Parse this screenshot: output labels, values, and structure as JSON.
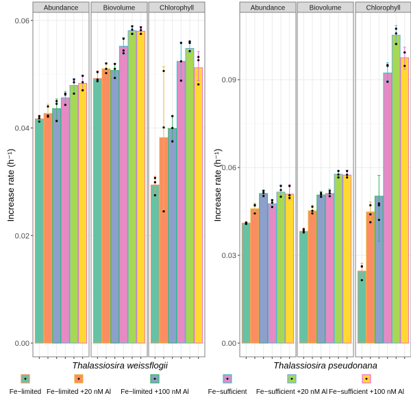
{
  "chart_data": [
    {
      "type": "bar",
      "title": "",
      "xlabel": "Thalassiosira weissflogii",
      "ylabel": "Increase rate (h⁻¹)",
      "ylim": [
        0,
        0.0615
      ],
      "yticks": [
        0.0,
        0.02,
        0.04,
        0.06
      ],
      "ytick_labels": [
        "0.00",
        "0.02",
        "0.04",
        "0.06"
      ],
      "grid": true,
      "facets": [
        "Abundance",
        "Biovolume",
        "Chlorophyll"
      ],
      "categories": [
        "Fe−limited",
        "Fe−limited +20 nM Al",
        "Fe−limited +100 nM Al",
        "Fe−sufficient",
        "Fe−sufficient +20 nM Al",
        "Fe−sufficient +100 nM Al"
      ],
      "series": [
        {
          "name": "Abundance",
          "values": [
            0.0417,
            0.0427,
            0.0436,
            0.0456,
            0.0479,
            0.0483
          ],
          "err_low": [
            0.0412,
            0.0422,
            0.0415,
            0.0443,
            0.0463,
            0.047
          ],
          "err_high": [
            0.0423,
            0.0444,
            0.0454,
            0.0468,
            0.0492,
            0.0498
          ],
          "points": [
            [
              0.0412,
              0.0418,
              0.0422
            ],
            [
              0.0421,
              0.0423,
              0.044
            ],
            [
              0.0413,
              0.0445,
              0.045
            ],
            [
              0.0443,
              0.0462,
              0.0464
            ],
            [
              0.0464,
              0.0485,
              0.049
            ],
            [
              0.047,
              0.0485,
              0.0497
            ]
          ]
        },
        {
          "name": "Biovolume",
          "values": [
            0.0492,
            0.051,
            0.0507,
            0.0552,
            0.0581,
            0.058
          ],
          "err_low": [
            0.0487,
            0.05,
            0.0493,
            0.0537,
            0.0574,
            0.0574
          ],
          "err_high": [
            0.0506,
            0.0521,
            0.052,
            0.0568,
            0.059,
            0.0589
          ],
          "points": [
            [
              0.0487,
              0.049,
              0.0504
            ],
            [
              0.0502,
              0.051,
              0.052
            ],
            [
              0.0493,
              0.051,
              0.0519
            ],
            [
              0.0539,
              0.0544,
              0.0566
            ],
            [
              0.0575,
              0.0583,
              0.0589
            ],
            [
              0.0575,
              0.0582,
              0.0587
            ]
          ]
        },
        {
          "name": "Chlorophyll",
          "values": [
            0.0294,
            0.0382,
            0.0399,
            0.0524,
            0.0548,
            0.0512
          ],
          "err_low": [
            0.0278,
            0.0249,
            0.0378,
            0.0487,
            0.054,
            0.0488
          ],
          "err_high": [
            0.031,
            0.0514,
            0.0423,
            0.056,
            0.056,
            0.0542
          ],
          "points": [
            [
              0.0275,
              0.0299,
              0.0307
            ],
            [
              0.0245,
              0.0401,
              0.0506
            ],
            [
              0.0375,
              0.04,
              0.0422
            ],
            [
              0.0488,
              0.0524,
              0.0558
            ],
            [
              0.0543,
              0.0558,
              0.0561
            ],
            [
              0.0481,
              0.0526,
              0.0532
            ]
          ]
        }
      ]
    },
    {
      "type": "bar",
      "title": "",
      "xlabel": "Thalassiosira pseudonana",
      "ylabel": "Increase rate (h⁻¹)",
      "ylim": [
        0,
        0.113
      ],
      "yticks": [
        0.0,
        0.03,
        0.06,
        0.09
      ],
      "ytick_labels": [
        "0.00",
        "0.03",
        "0.06",
        "0.09"
      ],
      "grid": true,
      "facets": [
        "Abundance",
        "Biovolume",
        "Chlorophyll"
      ],
      "categories": [
        "Fe−limited",
        "Fe−limited +20 nM Al",
        "Fe−limited +100 nM Al",
        "Fe−sufficient",
        "Fe−sufficient +20 nM Al",
        "Fe−sufficient +100 nM Al"
      ],
      "series": [
        {
          "name": "Abundance",
          "values": [
            0.041,
            0.0459,
            0.0511,
            0.0476,
            0.0516,
            0.0509
          ],
          "err_low": [
            0.0407,
            0.044,
            0.0498,
            0.0462,
            0.0502,
            0.049
          ],
          "err_high": [
            0.0413,
            0.0478,
            0.0523,
            0.0491,
            0.054,
            0.0541
          ],
          "points": [
            [
              0.0407,
              0.041,
              0.0412
            ],
            [
              0.0443,
              0.047,
              0.0472
            ],
            [
              0.0503,
              0.0513,
              0.052
            ],
            [
              0.0465,
              0.048,
              0.0488
            ],
            [
              0.05,
              0.0523,
              0.0537
            ],
            [
              0.0496,
              0.0505,
              0.0537
            ]
          ]
        },
        {
          "name": "Biovolume",
          "values": [
            0.0382,
            0.0452,
            0.0506,
            0.0511,
            0.0577,
            0.0574
          ],
          "err_low": [
            0.0377,
            0.044,
            0.0498,
            0.0499,
            0.0566,
            0.0565
          ],
          "err_high": [
            0.0393,
            0.0471,
            0.0518,
            0.0526,
            0.059,
            0.059
          ],
          "points": [
            [
              0.0378,
              0.0383,
              0.0389
            ],
            [
              0.0443,
              0.0452,
              0.0466
            ],
            [
              0.05,
              0.0508,
              0.0513
            ],
            [
              0.0502,
              0.0512,
              0.052
            ],
            [
              0.0566,
              0.0576,
              0.0588
            ],
            [
              0.0566,
              0.0575,
              0.0588
            ]
          ]
        },
        {
          "name": "Chlorophyll",
          "values": [
            0.0246,
            0.0448,
            0.0502,
            0.0923,
            0.1052,
            0.0975
          ],
          "err_low": [
            0.0211,
            0.0413,
            0.0348,
            0.0897,
            0.1022,
            0.0936
          ],
          "err_high": [
            0.0273,
            0.0482,
            0.0573,
            0.0958,
            0.1085,
            0.1011
          ],
          "points": [
            [
              0.0215,
              0.0262,
              0.0262
            ],
            [
              0.0413,
              0.044,
              0.0471
            ],
            [
              0.0421,
              0.0471,
              0.0477
            ],
            [
              0.0893,
              0.0947,
              0.095
            ],
            [
              0.1022,
              0.1058,
              0.1074
            ],
            [
              0.0947,
              0.0993,
              0.0993
            ]
          ]
        }
      ]
    }
  ],
  "legend": {
    "placement": "bottom",
    "items": [
      {
        "label": "Fe−limited",
        "fill": "#66c2a5",
        "outline": "#fc8d62"
      },
      {
        "label": "Fe−limited +20 nM Al",
        "fill": "#fc8d62",
        "outline": "#e5b83a"
      },
      {
        "label": "Fe−limited +100 nM Al",
        "fill": "#8da0cb",
        "outline": "#31b562"
      },
      {
        "label": "Fe−sufficient",
        "fill": "#e78ac3",
        "outline": "#2ec4d6"
      },
      {
        "label": "Fe−sufficient +20 nM Al",
        "fill": "#a6d854",
        "outline": "#6fa8e8"
      },
      {
        "label": "Fe−sufficient +100 nM Al",
        "fill": "#ffd92f",
        "outline": "#f06bd6"
      }
    ]
  },
  "colors": {
    "strip_fill": "#d9d9d9",
    "strip_border": "#333333",
    "panel_border": "#7f7f7f",
    "grid": "#ebebeb",
    "point": "#000000"
  }
}
